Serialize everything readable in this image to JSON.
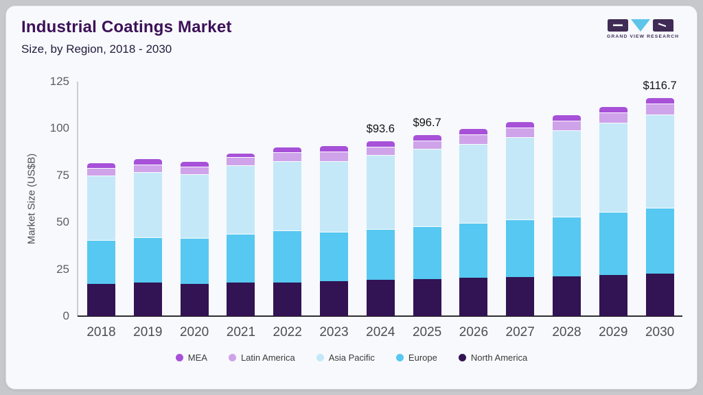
{
  "header": {
    "logo_text": "GRAND VIEW RESEARCH"
  },
  "colors": {
    "card_bg": "#f7f9fc",
    "outer_bg": "#c7c8cb",
    "title": "#3c1058",
    "x_axis_line": "#2d2d30",
    "y_axis_line": "#c9ced6",
    "logo_dark": "#3f2b55",
    "logo_blue": "#5cc5e9"
  },
  "chart_data": {
    "type": "bar",
    "stacked": true,
    "title": "Industrial Coatings Market",
    "subtitle": "Size, by Region, 2018 - 2030",
    "ylabel": "Market Size (US$B)",
    "xlabel": "",
    "ylim": [
      0,
      125
    ],
    "yticks": [
      0,
      25,
      50,
      75,
      100,
      125
    ],
    "grid": false,
    "legend_position": "bottom",
    "categories": [
      "2018",
      "2019",
      "2020",
      "2021",
      "2022",
      "2023",
      "2024",
      "2025",
      "2026",
      "2027",
      "2028",
      "2029",
      "2030"
    ],
    "series": [
      {
        "name": "North America",
        "color": "#321353",
        "values": [
          17.3,
          17.8,
          17.1,
          17.9,
          18.0,
          18.8,
          19.3,
          19.9,
          20.5,
          20.7,
          21.1,
          22.0,
          22.8
        ]
      },
      {
        "name": "Europe",
        "color": "#56c8f1",
        "values": [
          23.2,
          24.2,
          24.5,
          26.1,
          27.7,
          26.2,
          27.1,
          28.0,
          29.2,
          30.8,
          32.0,
          33.4,
          35.1
        ]
      },
      {
        "name": "Asia Pacific",
        "color": "#c4e8f8",
        "values": [
          34.3,
          34.8,
          34.2,
          36.4,
          36.9,
          37.6,
          39.5,
          41.2,
          42.0,
          43.9,
          45.9,
          47.7,
          49.7
        ]
      },
      {
        "name": "Latin America",
        "color": "#cfa3ea",
        "values": [
          4.2,
          4.1,
          4.0,
          4.4,
          4.6,
          5.1,
          4.4,
          4.3,
          5.0,
          5.0,
          5.2,
          5.5,
          5.6
        ]
      },
      {
        "name": "MEA",
        "color": "#a751d8",
        "values": [
          2.9,
          3.3,
          2.9,
          2.2,
          3.0,
          3.3,
          3.3,
          3.3,
          3.5,
          3.5,
          3.3,
          3.4,
          3.5
        ]
      }
    ],
    "legend_order": [
      "MEA",
      "Latin America",
      "Asia Pacific",
      "Europe",
      "North America"
    ],
    "total_labels": [
      "",
      "",
      "",
      "",
      "",
      "",
      "$93.6",
      "$96.7",
      "",
      "",
      "",
      "",
      "$116.7"
    ],
    "totals": [
      81.9,
      84.2,
      82.7,
      87.0,
      90.2,
      91.0,
      93.6,
      96.7,
      100.2,
      103.9,
      107.5,
      112.0,
      116.7
    ]
  }
}
